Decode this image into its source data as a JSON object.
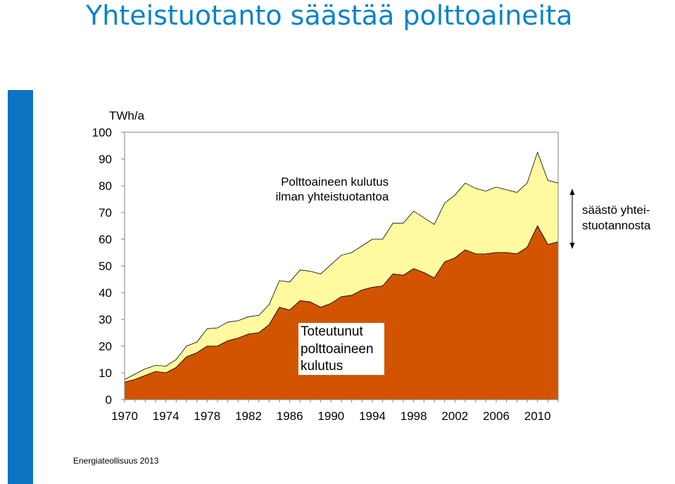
{
  "slide": {
    "title": "Yhteistuotanto säästää polttoaineita",
    "source": "Energiateollisuus  2013"
  },
  "chart_data": {
    "type": "area",
    "unit_label": "TWh/a",
    "ylim": [
      0,
      100
    ],
    "yticks": [
      0,
      10,
      20,
      30,
      40,
      50,
      60,
      70,
      80,
      90,
      100
    ],
    "xlim": [
      1970,
      2012
    ],
    "xticks": [
      1970,
      1974,
      1978,
      1982,
      1986,
      1990,
      1994,
      1998,
      2002,
      2006,
      2010
    ],
    "grid": false,
    "x": [
      1970,
      1971,
      1972,
      1973,
      1974,
      1975,
      1976,
      1977,
      1978,
      1979,
      1980,
      1981,
      1982,
      1983,
      1984,
      1985,
      1986,
      1987,
      1988,
      1989,
      1990,
      1991,
      1992,
      1993,
      1994,
      1995,
      1996,
      1997,
      1998,
      1999,
      2000,
      2001,
      2002,
      2003,
      2004,
      2005,
      2006,
      2007,
      2008,
      2009,
      2010,
      2011,
      2012
    ],
    "series": [
      {
        "name": "Toteutunut polttoaineen kulutus",
        "color": "#d35400",
        "values": [
          6.5,
          7.5,
          9.0,
          10.5,
          10.0,
          12.0,
          16.0,
          17.5,
          20.0,
          20.0,
          22.0,
          23.0,
          24.5,
          25.0,
          28.0,
          34.5,
          33.5,
          37.0,
          36.5,
          34.5,
          36.0,
          38.5,
          39.0,
          41.0,
          42.0,
          42.5,
          47.0,
          46.5,
          49.0,
          47.5,
          45.5,
          51.5,
          53.0,
          56.0,
          54.5,
          54.5,
          55.0,
          55.0,
          54.5,
          57.0,
          65.0,
          58.0,
          59.0
        ]
      },
      {
        "name": "Polttoaineen kulutus ilman yhteistuotantoa",
        "color": "#fffaa0",
        "values": [
          7.5,
          9.5,
          11.5,
          12.8,
          12.5,
          15.0,
          20.0,
          21.5,
          26.5,
          26.8,
          29.0,
          29.5,
          31.0,
          31.5,
          35.5,
          44.5,
          44.0,
          48.5,
          48.0,
          47.0,
          50.5,
          54.0,
          55.0,
          57.5,
          60.0,
          60.0,
          66.0,
          66.0,
          70.5,
          68.0,
          65.5,
          73.5,
          76.5,
          81.0,
          79.0,
          78.0,
          79.5,
          78.5,
          77.5,
          81.0,
          92.5,
          82.0,
          81.0
        ]
      }
    ],
    "annotations": [
      "Polttoaineen kulutus ilman yhteistuotantoa",
      "Toteutunut polttoaineen kulutus",
      "säästö yhteistuotannosta"
    ]
  }
}
